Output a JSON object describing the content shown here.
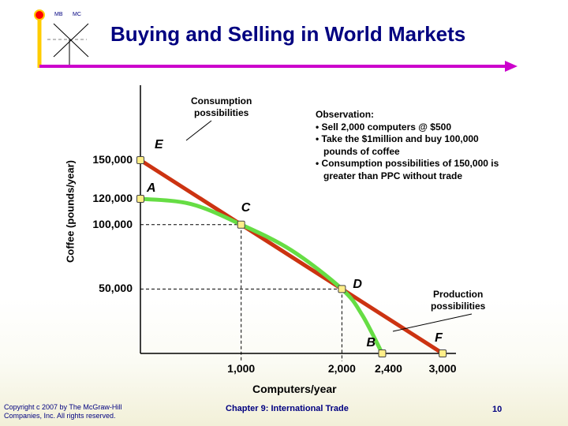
{
  "slide": {
    "title": "Buying and Selling in World Markets",
    "corner_labels": [
      "MB",
      "MC"
    ],
    "copyright_lines": [
      "Copyright c 2007 by The McGraw-Hill",
      "Companies, Inc.  All rights reserved."
    ],
    "chapter": "Chapter 9: International Trade",
    "page_number": "10",
    "accent_color": "#000080",
    "arrow_color": "#cc00cc",
    "logo_colors": [
      "#ff0000",
      "#ffcc00"
    ]
  },
  "observation": {
    "lines": [
      "Observation:",
      "• Sell 2,000 computers @ $500",
      "• Take the $1million and buy 100,000",
      "   pounds of coffee",
      "• Consumption possibilities of 150,000 is",
      "   greater than PPC without trade"
    ]
  },
  "chart_data": {
    "type": "line",
    "title": "",
    "xlabel": "Computers/year",
    "ylabel": "Coffee (pounds/year)",
    "xlim": [
      0,
      3300
    ],
    "ylim": [
      0,
      175000
    ],
    "x_ticks": [
      {
        "value": 1000,
        "label": "1,000"
      },
      {
        "value": 2000,
        "label": "2,000"
      },
      {
        "value": 2400,
        "label": "2,400"
      },
      {
        "value": 3000,
        "label": "3,000"
      }
    ],
    "y_ticks": [
      {
        "value": 150000,
        "label": "150,000"
      },
      {
        "value": 120000,
        "label": "120,000"
      },
      {
        "value": 100000,
        "label": "100,000"
      },
      {
        "value": 50000,
        "label": "50,000"
      }
    ],
    "series": [
      {
        "name": "Consumption possibilities",
        "color": "#cc3311",
        "points": [
          [
            0,
            150000
          ],
          [
            3000,
            0
          ]
        ]
      },
      {
        "name": "Production possibilities",
        "color": "#66dd44",
        "points": [
          [
            0,
            120000
          ],
          [
            500,
            116000
          ],
          [
            1000,
            100000
          ],
          [
            1500,
            80000
          ],
          [
            2000,
            50000
          ],
          [
            2200,
            30000
          ],
          [
            2400,
            0
          ]
        ]
      }
    ],
    "points": [
      {
        "label": "E",
        "x": 0,
        "y": 150000
      },
      {
        "label": "A",
        "x": 0,
        "y": 120000
      },
      {
        "label": "C",
        "x": 1000,
        "y": 100000
      },
      {
        "label": "D",
        "x": 2000,
        "y": 50000
      },
      {
        "label": "B",
        "x": 2400,
        "y": 0
      },
      {
        "label": "F",
        "x": 3000,
        "y": 0
      }
    ],
    "callouts": [
      {
        "text": "Consumption\npossibilities",
        "points_to": "Consumption possibilities"
      },
      {
        "text": "Production\npossibilities",
        "points_to": "Production possibilities"
      }
    ],
    "grid": false
  }
}
